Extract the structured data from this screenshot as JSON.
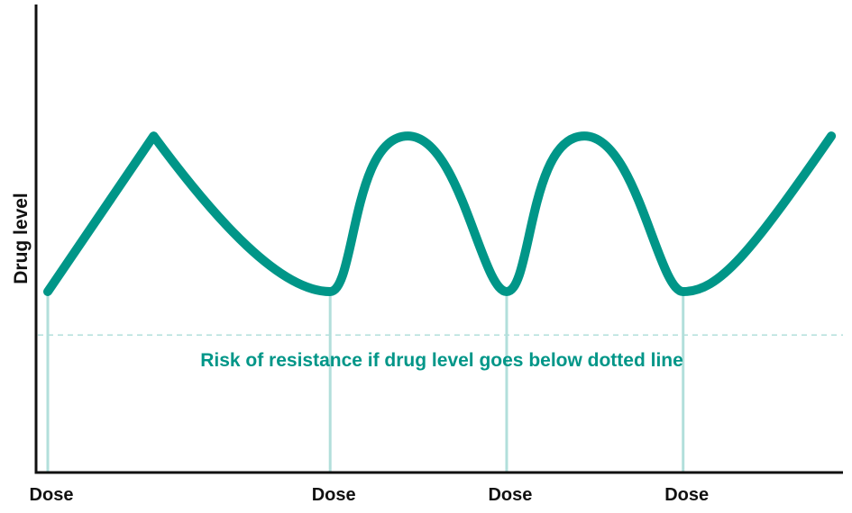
{
  "chart_data": {
    "type": "line",
    "title": "",
    "xlabel": "",
    "ylabel": "Drug level",
    "grid": false,
    "legend": "none",
    "x_ticks": [
      {
        "x": 0,
        "label": "Dose"
      },
      {
        "x": 4,
        "label": "Dose"
      },
      {
        "x": 6.5,
        "label": "Dose"
      },
      {
        "x": 9,
        "label": "Dose"
      }
    ],
    "series": [
      {
        "color": "#009688",
        "segments": [
          {
            "type": "linear",
            "from": [
              0,
              0.5
            ],
            "to": [
              1.5,
              0.93
            ]
          },
          {
            "type": "smooth",
            "points": [
              [
                1.5,
                0.93
              ],
              [
                4,
                0.5
              ]
            ]
          },
          {
            "type": "smooth",
            "points": [
              [
                4,
                0.5
              ],
              [
                5.1,
                0.93
              ],
              [
                6.5,
                0.5
              ]
            ]
          },
          {
            "type": "smooth",
            "points": [
              [
                6.5,
                0.5
              ],
              [
                7.6,
                0.93
              ],
              [
                9,
                0.5
              ]
            ]
          },
          {
            "type": "smooth",
            "points": [
              [
                9,
                0.5
              ],
              [
                11.1,
                0.93
              ]
            ]
          }
        ]
      }
    ],
    "threshold": {
      "y": 0.38,
      "style": "dotted",
      "color": "#b2dfdb",
      "label": "Risk of resistance if drug level goes below dotted line",
      "label_color": "#009688"
    },
    "dose_line_color": "#b2dfdb",
    "axis_color": "#111111"
  }
}
